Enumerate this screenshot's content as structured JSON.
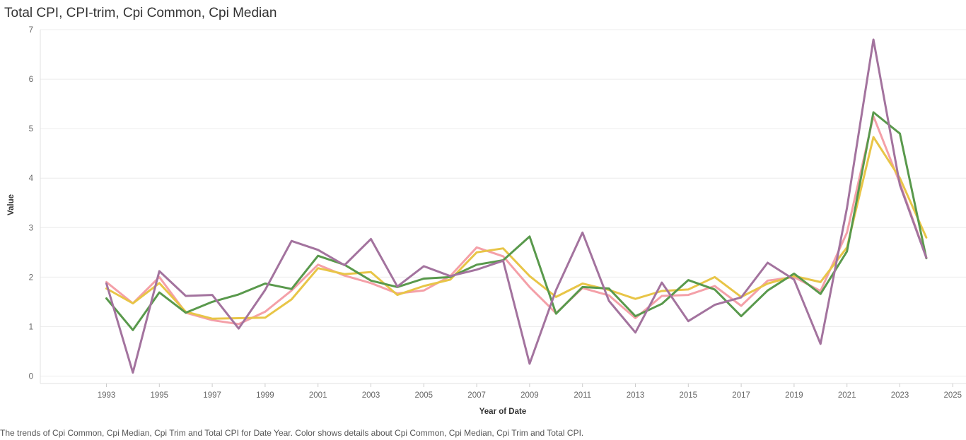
{
  "title": "Total CPI, CPI-trim, Cpi Common, Cpi Median",
  "caption": "The trends of Cpi Common, Cpi Median, Cpi Trim and Total CPI for Date Year.  Color shows details about Cpi Common, Cpi Median, Cpi Trim and Total CPI.",
  "chart_data": {
    "type": "line",
    "title": "Total CPI, CPI-trim, Cpi Common, Cpi Median",
    "xlabel": "Year of Date",
    "ylabel": "Value",
    "xlim": [
      1990.5,
      2025.5
    ],
    "ylim": [
      -0.15,
      7
    ],
    "xticks": [
      1993,
      1995,
      1997,
      1999,
      2001,
      2003,
      2005,
      2007,
      2009,
      2011,
      2013,
      2015,
      2017,
      2019,
      2021,
      2023,
      2025
    ],
    "yticks": [
      0,
      1,
      2,
      3,
      4,
      5,
      6,
      7
    ],
    "grid": true,
    "x": [
      1993,
      1994,
      1995,
      1996,
      1997,
      1998,
      1999,
      2000,
      2001,
      2002,
      2003,
      2004,
      2005,
      2006,
      2007,
      2008,
      2009,
      2010,
      2011,
      2012,
      2013,
      2014,
      2015,
      2016,
      2017,
      2018,
      2019,
      2020,
      2021,
      2022,
      2023,
      2024
    ],
    "series": [
      {
        "name": "Cpi Median",
        "color": "#f4a0a8",
        "values": [
          1.9,
          1.47,
          2.0,
          1.28,
          1.13,
          1.05,
          1.3,
          1.73,
          2.25,
          2.03,
          1.88,
          1.67,
          1.73,
          2.02,
          2.6,
          2.42,
          1.8,
          1.27,
          1.78,
          1.63,
          1.17,
          1.62,
          1.64,
          1.82,
          1.42,
          1.93,
          2.0,
          1.72,
          2.9,
          5.25,
          3.9,
          2.4
        ]
      },
      {
        "name": "Cpi Trim",
        "color": "#e8c547",
        "values": [
          1.77,
          1.47,
          1.88,
          1.3,
          1.16,
          1.17,
          1.18,
          1.55,
          2.18,
          2.06,
          2.1,
          1.64,
          1.82,
          1.95,
          2.5,
          2.58,
          2.02,
          1.6,
          1.87,
          1.74,
          1.56,
          1.72,
          1.75,
          2.0,
          1.6,
          1.87,
          2.02,
          1.9,
          2.6,
          4.83,
          4.0,
          2.8
        ]
      },
      {
        "name": "Cpi Common",
        "color": "#59994c",
        "values": [
          1.57,
          0.93,
          1.69,
          1.28,
          1.5,
          1.65,
          1.87,
          1.76,
          2.43,
          2.25,
          1.93,
          1.8,
          1.97,
          2.0,
          2.25,
          2.34,
          2.82,
          1.26,
          1.8,
          1.77,
          1.21,
          1.46,
          1.94,
          1.75,
          1.21,
          1.73,
          2.07,
          1.66,
          2.52,
          5.33,
          4.9,
          2.38
        ]
      },
      {
        "name": "Total CPI",
        "color": "#a3739e",
        "values": [
          1.87,
          0.07,
          2.12,
          1.62,
          1.64,
          0.96,
          1.74,
          2.73,
          2.55,
          2.24,
          2.77,
          1.81,
          2.22,
          2.02,
          2.15,
          2.33,
          0.25,
          1.74,
          2.9,
          1.52,
          0.88,
          1.89,
          1.11,
          1.44,
          1.59,
          2.29,
          1.95,
          0.65,
          3.4,
          6.8,
          3.86,
          2.39
        ]
      }
    ]
  }
}
